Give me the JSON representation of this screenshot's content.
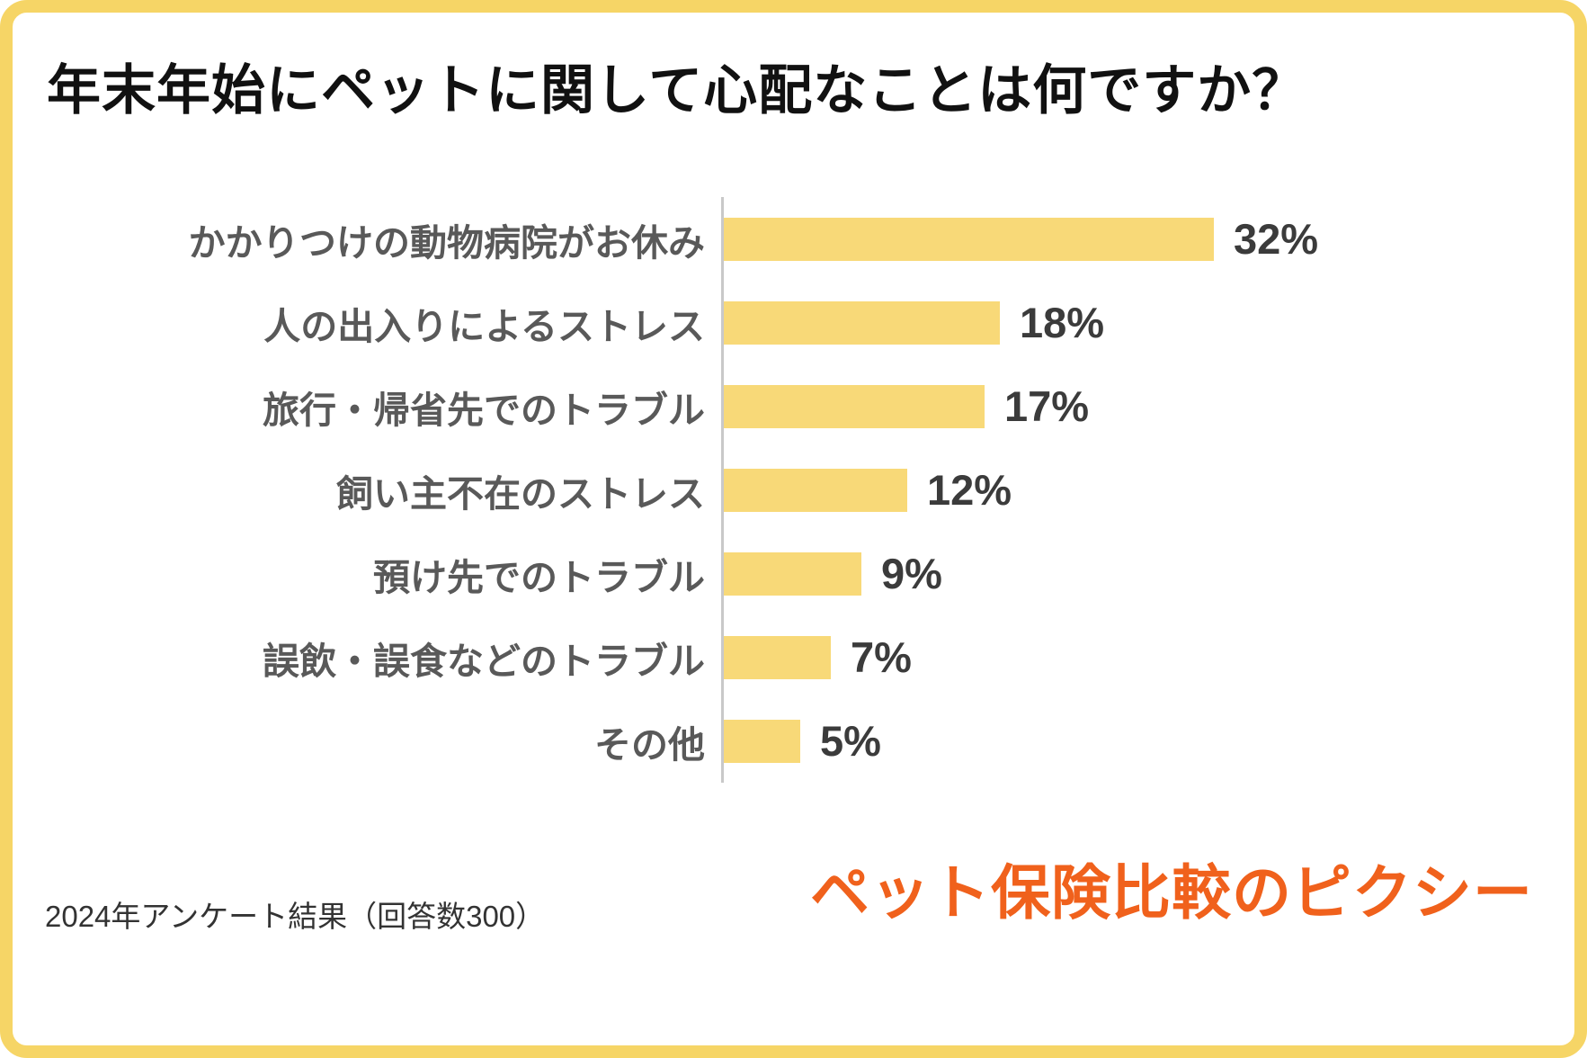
{
  "title": "年末年始にペットに関して心配なことは何ですか？",
  "footer": {
    "note": "2024年アンケート結果（回答数300）"
  },
  "logo": {
    "text": "ペット保険比較のピクシー",
    "color": "#f0611c"
  },
  "colors": {
    "frame_border": "#f6d566",
    "bar": "#f8d978",
    "category_label": "#595959",
    "value_label": "#3b3b3b",
    "axis_line": "#c9c9c9",
    "title": "#111111"
  },
  "chart_data": {
    "type": "bar",
    "orientation": "horizontal",
    "title": "年末年始にペットに関して心配なことは何ですか？",
    "categories": [
      "かかりつけの動物病院がお休み",
      "人の出入りによるストレス",
      "旅行・帰省先でのトラブル",
      "飼い主不在のストレス",
      "預け先でのトラブル",
      "誤飲・誤食などのトラブル",
      "その他"
    ],
    "values": [
      32,
      18,
      17,
      12,
      9,
      7,
      5
    ],
    "unit": "%",
    "xlabel": "",
    "ylabel": "",
    "xlim": [
      0,
      35
    ],
    "grid": false,
    "legend": "none",
    "data_labels": "outside-end",
    "source_note": "2024年アンケート結果（回答数300）"
  }
}
